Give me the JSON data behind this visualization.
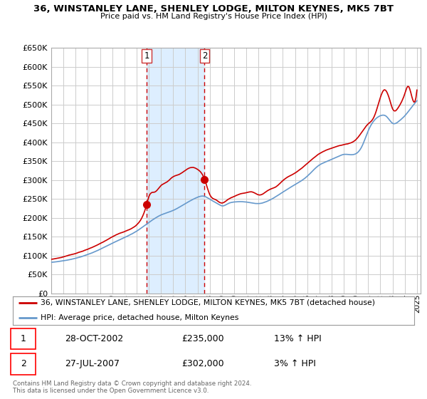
{
  "title": "36, WINSTANLEY LANE, SHENLEY LODGE, MILTON KEYNES, MK5 7BT",
  "subtitle": "Price paid vs. HM Land Registry's House Price Index (HPI)",
  "ylim": [
    0,
    650000
  ],
  "yticks": [
    0,
    50000,
    100000,
    150000,
    200000,
    250000,
    300000,
    350000,
    400000,
    450000,
    500000,
    550000,
    600000,
    650000
  ],
  "xlim_start": 1995.0,
  "xlim_end": 2025.3,
  "purchase1_year": 2002.83,
  "purchase1_price": 235000,
  "purchase1_label": "1",
  "purchase1_date": "28-OCT-2002",
  "purchase1_hpi": "13% ↑ HPI",
  "purchase2_year": 2007.58,
  "purchase2_price": 302000,
  "purchase2_label": "2",
  "purchase2_date": "27-JUL-2007",
  "purchase2_hpi": "3% ↑ HPI",
  "property_line_color": "#cc0000",
  "hpi_line_color": "#6699cc",
  "shade_color": "#ddeeff",
  "legend_property": "36, WINSTANLEY LANE, SHENLEY LODGE, MILTON KEYNES, MK5 7BT (detached house)",
  "legend_hpi": "HPI: Average price, detached house, Milton Keynes",
  "footer": "Contains HM Land Registry data © Crown copyright and database right 2024.\nThis data is licensed under the Open Government Licence v3.0.",
  "background_color": "#ffffff",
  "grid_color": "#cccccc"
}
